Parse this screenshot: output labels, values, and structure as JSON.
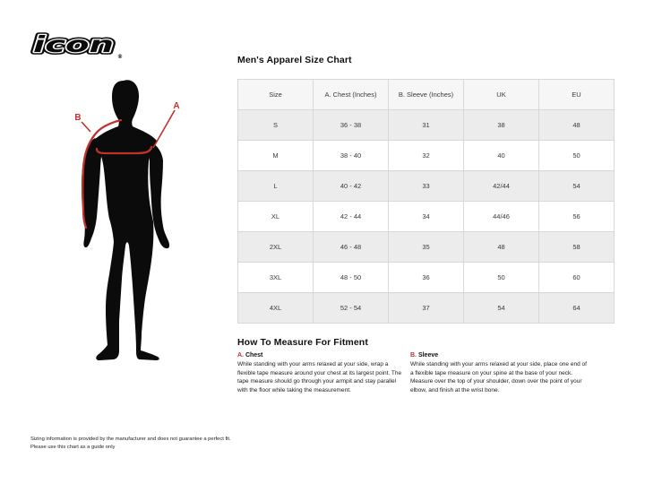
{
  "logo": {
    "text": "icon",
    "registered": "®"
  },
  "figure": {
    "label_a": "A",
    "label_b": "B",
    "description": "male-body-silhouette-with-chest-and-sleeve-measurement-lines"
  },
  "size_chart": {
    "title": "Men's Apparel Size Chart",
    "columns": [
      "Size",
      "A. Chest (Inches)",
      "B. Sleeve (Inches)",
      "UK",
      "EU"
    ],
    "rows": [
      [
        "S",
        "36 - 38",
        "31",
        "38",
        "48"
      ],
      [
        "M",
        "38 - 40",
        "32",
        "40",
        "50"
      ],
      [
        "L",
        "40 - 42",
        "33",
        "42/44",
        "54"
      ],
      [
        "XL",
        "42 - 44",
        "34",
        "44/46",
        "56"
      ],
      [
        "2XL",
        "46 - 48",
        "35",
        "48",
        "58"
      ],
      [
        "3XL",
        "48 - 50",
        "36",
        "50",
        "60"
      ],
      [
        "4XL",
        "52 - 54",
        "37",
        "54",
        "64"
      ]
    ]
  },
  "how_to_measure": {
    "title": "How To Measure For Fitment",
    "chest": {
      "label_prefix": "A.",
      "label": " Chest",
      "text": "While standing with your arms relaxed at your side, wrap a flexible tape measure around your chest at its largest point. The tape measure should go through your armpit and stay parallel with the floor while taking the measurement."
    },
    "sleeve": {
      "label_prefix": "B.",
      "label": " Sleeve",
      "text": "While standing with your arms relaxed at your side, place one end of a flexible tape measure on your spine at the base of your neck. Measure over the top of your shoulder, down over the point of your elbow, and finish at the wrist bone."
    }
  },
  "footer": {
    "lines": [
      "Sizing information is provided by the manufacturer and does not guarantee a perfect fit.",
      "Please use this chart as a guide only"
    ]
  },
  "colors": {
    "accent_red": "#c0322e",
    "silhouette_black": "#0b0b0b",
    "table_header_bg": "#f6f6f6",
    "table_alt_row_bg": "#ececec",
    "table_border": "#d8d8d8"
  }
}
